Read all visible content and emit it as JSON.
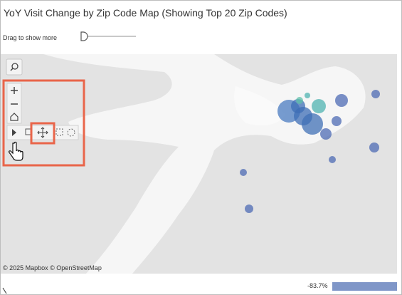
{
  "header": {
    "title": "YoY Visit Change by Zip Code Map (Showing Top 20 Zip Codes)"
  },
  "slider": {
    "label": "Drag to show more"
  },
  "map": {
    "attribution": "© 2025 Mapbox © OpenStreetMap"
  },
  "legend": {
    "min_label": "-83.7%"
  }
}
